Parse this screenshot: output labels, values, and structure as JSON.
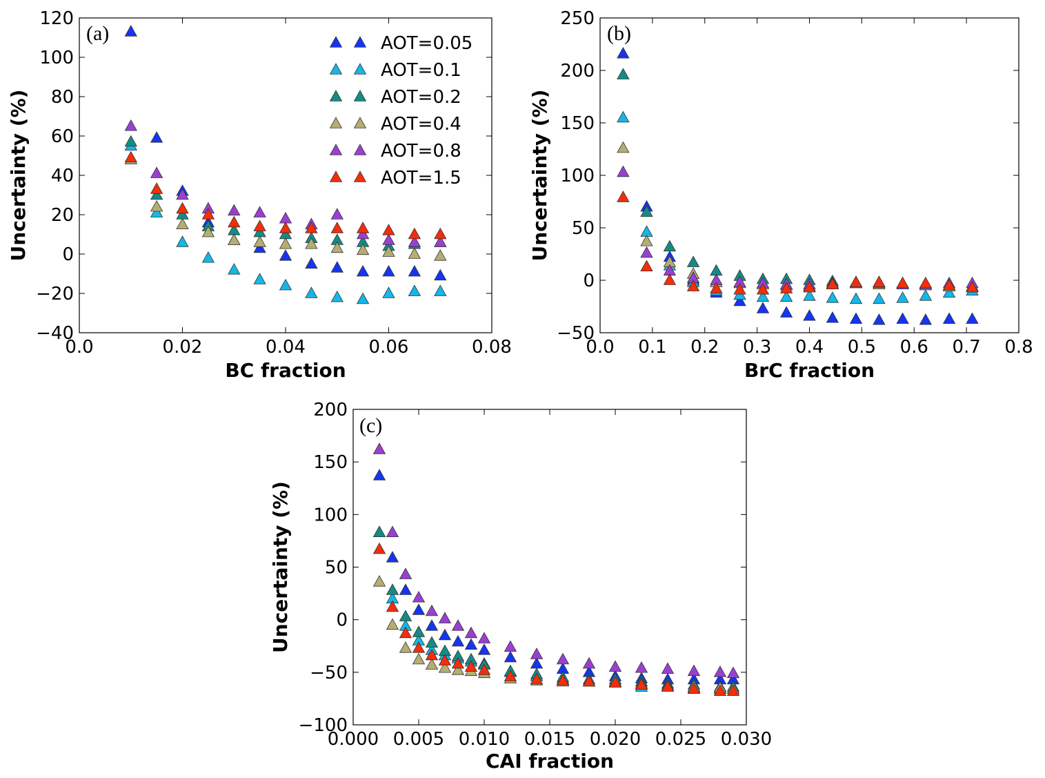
{
  "figure": {
    "series_styles": [
      {
        "name": "AOT=0.05",
        "color": "#1535f0"
      },
      {
        "name": "AOT=0.1",
        "color": "#13b7e8"
      },
      {
        "name": "AOT=0.2",
        "color": "#158b84"
      },
      {
        "name": "AOT=0.4",
        "color": "#b5ad72"
      },
      {
        "name": "AOT=0.8",
        "color": "#9a40d0"
      },
      {
        "name": "AOT=1.5",
        "color": "#f52d0a"
      }
    ]
  },
  "chart_data": [
    {
      "type": "scatter",
      "panel": "(a)",
      "xlabel": "BC fraction",
      "ylabel": "Uncertainty (%)",
      "xlim": [
        0.0,
        0.08
      ],
      "ylim": [
        -40,
        120
      ],
      "xticks": [
        "0.0",
        "0.02",
        "0.04",
        "0.06",
        "0.08"
      ],
      "yticks": [
        "−40",
        "−20",
        "0",
        "20",
        "40",
        "60",
        "80",
        "100",
        "120"
      ],
      "legend_position": "top-right",
      "x": [
        0.01,
        0.015,
        0.02,
        0.025,
        0.03,
        0.035,
        0.04,
        0.045,
        0.05,
        0.055,
        0.06,
        0.065,
        0.07
      ],
      "series": [
        {
          "name": "AOT=0.05",
          "values": [
            113,
            59,
            32,
            16,
            7,
            3,
            -1,
            -5,
            -7,
            -9,
            -9,
            -9,
            -11
          ]
        },
        {
          "name": "AOT=0.1",
          "values": [
            55,
            21,
            6,
            -2,
            -8,
            -13,
            -16,
            -20,
            -22,
            -23,
            -20,
            -19,
            -19
          ]
        },
        {
          "name": "AOT=0.2",
          "values": [
            57,
            30,
            20,
            14,
            12,
            11,
            10,
            8,
            7,
            6,
            4,
            5,
            6
          ]
        },
        {
          "name": "AOT=0.4",
          "values": [
            48,
            24,
            15,
            11,
            7,
            6,
            5,
            5,
            3,
            2,
            1,
            0,
            -1
          ]
        },
        {
          "name": "AOT=0.8",
          "values": [
            65,
            41,
            30,
            23,
            22,
            21,
            18,
            15,
            20,
            10,
            7,
            6,
            6
          ]
        },
        {
          "name": "AOT=1.5",
          "values": [
            49,
            33,
            23,
            20,
            16,
            14,
            13,
            13,
            13,
            13,
            12,
            10,
            10
          ]
        }
      ]
    },
    {
      "type": "scatter",
      "panel": "(b)",
      "xlabel": "BrC fraction",
      "ylabel": "Uncertainty (%)",
      "xlim": [
        0.0,
        0.8
      ],
      "ylim": [
        -50,
        250
      ],
      "xticks": [
        "0.0",
        "0.1",
        "0.2",
        "0.3",
        "0.4",
        "0.5",
        "0.6",
        "0.7",
        "0.8"
      ],
      "yticks": [
        "−50",
        "0",
        "50",
        "100",
        "150",
        "200",
        "250"
      ],
      "x": [
        0.044,
        0.089,
        0.133,
        0.178,
        0.222,
        0.267,
        0.311,
        0.356,
        0.4,
        0.444,
        0.489,
        0.533,
        0.578,
        0.622,
        0.667,
        0.711
      ],
      "series": [
        {
          "name": "AOT=0.05",
          "values": [
            216,
            70,
            22,
            0,
            -12,
            -20,
            -27,
            -31,
            -34,
            -36,
            -37,
            -38,
            -37,
            -38,
            -37,
            -37
          ]
        },
        {
          "name": "AOT=0.1",
          "values": [
            155,
            46,
            14,
            -2,
            -10,
            -14,
            -16,
            -16,
            -15,
            -17,
            -18,
            -18,
            -17,
            -15,
            -12,
            -10
          ]
        },
        {
          "name": "AOT=0.2",
          "values": [
            196,
            65,
            32,
            17,
            9,
            4,
            1,
            1,
            0,
            -1,
            -2,
            -2,
            -3,
            -4,
            -5,
            -6
          ]
        },
        {
          "name": "AOT=0.4",
          "values": [
            126,
            37,
            17,
            6,
            -2,
            -3,
            -4,
            -5,
            -6,
            -4,
            -3,
            -4,
            -4,
            -5,
            -6,
            -7
          ]
        },
        {
          "name": "AOT=0.8",
          "values": [
            103,
            26,
            9,
            2,
            0,
            -2,
            -3,
            -4,
            -4,
            -3,
            -3,
            -3,
            -4,
            -4,
            -3,
            -3
          ]
        },
        {
          "name": "AOT=1.5",
          "values": [
            79,
            13,
            0,
            -6,
            -8,
            -9,
            -9,
            -8,
            -7,
            -4,
            -2,
            -2,
            -3,
            -3,
            -5,
            -7
          ]
        }
      ]
    },
    {
      "type": "scatter",
      "panel": "(c)",
      "xlabel": "CAI fraction",
      "ylabel": "Uncertainty (%)",
      "xlim": [
        0.0,
        0.03
      ],
      "ylim": [
        -100,
        200
      ],
      "xticks": [
        "0.000",
        "0.005",
        "0.010",
        "0.015",
        "0.020",
        "0.025",
        "0.030"
      ],
      "yticks": [
        "−100",
        "−50",
        "0",
        "50",
        "100",
        "150",
        "200"
      ],
      "x": [
        0.002,
        0.003,
        0.004,
        0.005,
        0.006,
        0.007,
        0.008,
        0.009,
        0.01,
        0.012,
        0.014,
        0.016,
        0.018,
        0.02,
        0.022,
        0.024,
        0.026,
        0.028,
        0.029
      ],
      "series": [
        {
          "name": "AOT=0.05",
          "values": [
            137,
            59,
            28,
            9,
            -6,
            -15,
            -21,
            -24,
            -29,
            -36,
            -42,
            -47,
            -50,
            -54,
            -56,
            -57,
            -57,
            -57,
            -57
          ]
        },
        {
          "name": "AOT=0.1",
          "values": [
            83,
            20,
            -6,
            -20,
            -29,
            -34,
            -37,
            -40,
            -42,
            -50,
            -54,
            -57,
            -59,
            -59,
            -64,
            -63,
            -65,
            -66,
            -66
          ]
        },
        {
          "name": "AOT=0.2",
          "values": [
            83,
            28,
            3,
            -12,
            -22,
            -30,
            -35,
            -38,
            -43,
            -49,
            -52,
            -55,
            -57,
            -57,
            -59,
            -61,
            -62,
            -64,
            -64
          ]
        },
        {
          "name": "AOT=0.4",
          "values": [
            36,
            -5,
            -27,
            -38,
            -43,
            -46,
            -48,
            -49,
            -51,
            -56,
            -58,
            -59,
            -59,
            -60,
            -61,
            -63,
            -64,
            -65,
            -66
          ]
        },
        {
          "name": "AOT=0.8",
          "values": [
            162,
            83,
            43,
            21,
            8,
            1,
            -6,
            -13,
            -18,
            -26,
            -33,
            -38,
            -42,
            -45,
            -46,
            -47,
            -49,
            -50,
            -51
          ]
        },
        {
          "name": "AOT=1.5",
          "values": [
            67,
            12,
            -13,
            -27,
            -34,
            -39,
            -42,
            -45,
            -48,
            -54,
            -57,
            -58,
            -59,
            -60,
            -62,
            -64,
            -66,
            -68,
            -68
          ]
        }
      ]
    }
  ]
}
